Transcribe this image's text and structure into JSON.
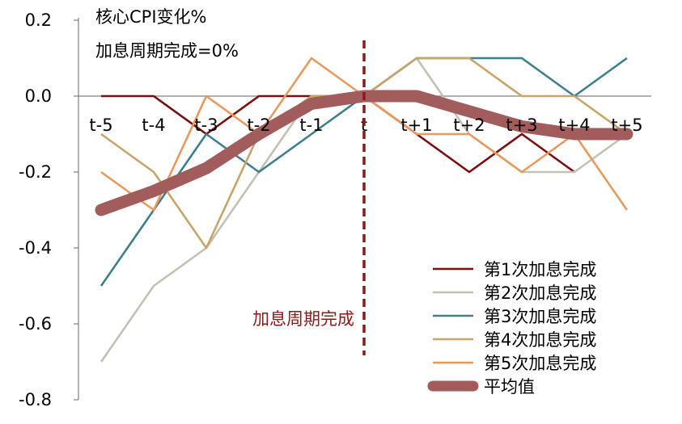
{
  "chart_data": {
    "type": "line",
    "title": "核心CPI变化%",
    "subtitle": "加息周期完成=0%",
    "xlabel": "",
    "ylabel": "",
    "categories": [
      "t-5",
      "t-4",
      "t-3",
      "t-2",
      "t-1",
      "t",
      "t+1",
      "t+2",
      "t+3",
      "t+4",
      "t+5"
    ],
    "ylim": [
      -0.8,
      0.2
    ],
    "yticks": [
      "0.2",
      "0.0",
      "-0.2",
      "-0.4",
      "-0.6",
      "-0.8"
    ],
    "grid": false,
    "legend_position": "bottom-right",
    "annotation": {
      "text": "加息周期完成",
      "x_category": "t",
      "color": "#8b1a1a"
    },
    "series": [
      {
        "name": "第1次加息完成",
        "color": "#7a0e0e",
        "values": [
          0.0,
          0.0,
          -0.1,
          0.0,
          0.0,
          0.0,
          -0.1,
          -0.2,
          -0.1,
          -0.2,
          null
        ]
      },
      {
        "name": "第2次加息完成",
        "color": "#c4c1b4",
        "values": [
          -0.7,
          -0.5,
          -0.4,
          -0.2,
          0.0,
          0.0,
          0.1,
          -0.1,
          -0.2,
          -0.2,
          -0.1
        ]
      },
      {
        "name": "第3次加息完成",
        "color": "#3c7f8e",
        "values": [
          -0.5,
          -0.3,
          -0.1,
          -0.2,
          -0.1,
          0.0,
          0.1,
          0.1,
          0.1,
          0.0,
          0.1
        ]
      },
      {
        "name": "第4次加息完成",
        "color": "#c7a46a",
        "values": [
          -0.1,
          -0.2,
          -0.4,
          -0.1,
          0.0,
          0.0,
          0.1,
          0.1,
          0.0,
          0.0,
          -0.1
        ]
      },
      {
        "name": "第5次加息完成",
        "color": "#e89a5e",
        "values": [
          -0.2,
          -0.3,
          0.0,
          -0.1,
          0.1,
          0.0,
          -0.1,
          -0.1,
          -0.2,
          -0.1,
          -0.3
        ]
      },
      {
        "name": "平均值",
        "color": "#a35c5c",
        "values": [
          -0.3,
          -0.25,
          -0.19,
          -0.1,
          -0.02,
          0.0,
          0.0,
          -0.04,
          -0.08,
          -0.1,
          -0.1
        ],
        "thick": true
      }
    ]
  }
}
